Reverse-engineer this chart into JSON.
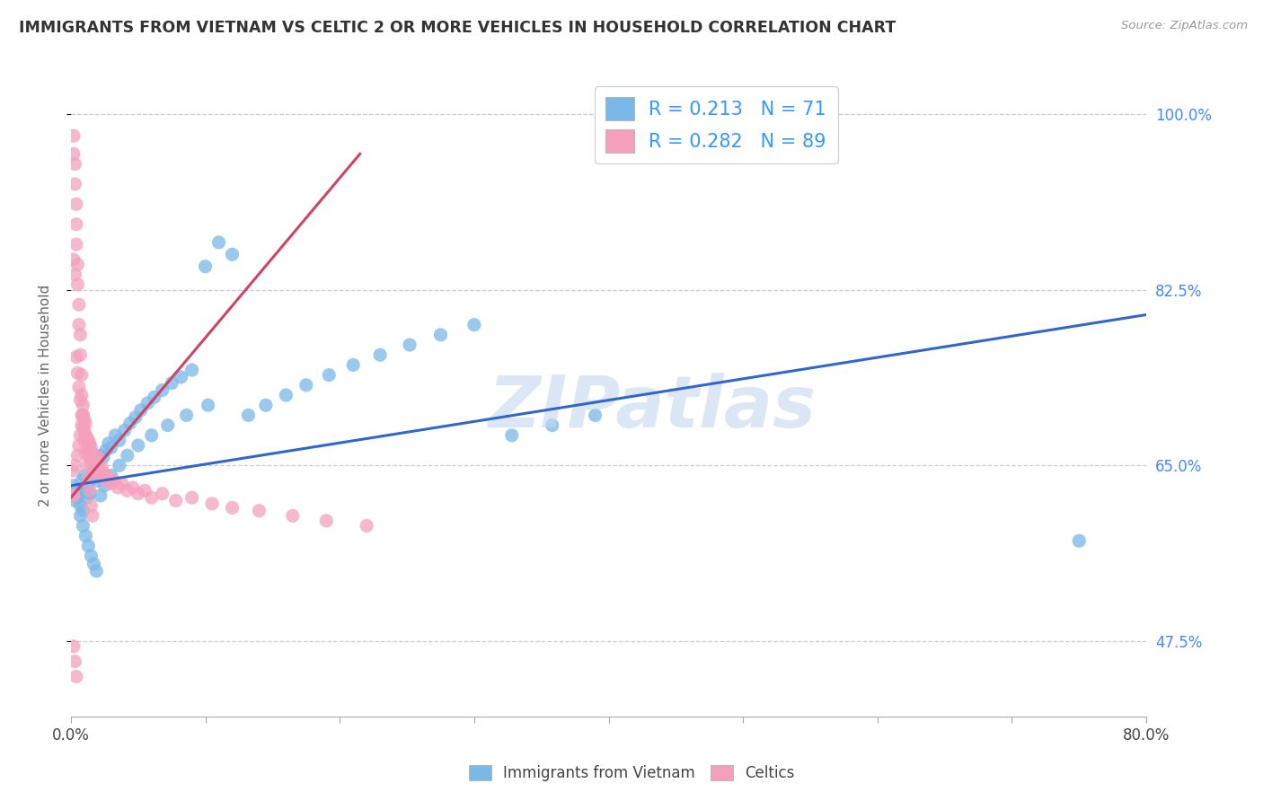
{
  "title": "IMMIGRANTS FROM VIETNAM VS CELTIC 2 OR MORE VEHICLES IN HOUSEHOLD CORRELATION CHART",
  "source": "Source: ZipAtlas.com",
  "ylabel_label": "2 or more Vehicles in Household",
  "xlim": [
    0.0,
    0.8
  ],
  "ylim": [
    0.4,
    1.04
  ],
  "ytick_vals": [
    0.475,
    0.65,
    0.825,
    1.0
  ],
  "ytick_labels": [
    "47.5%",
    "65.0%",
    "82.5%",
    "100.0%"
  ],
  "xtick_vals": [
    0.0,
    0.1,
    0.2,
    0.3,
    0.4,
    0.5,
    0.6,
    0.7,
    0.8
  ],
  "xtick_labels": [
    "0.0%",
    "",
    "",
    "",
    "",
    "",
    "",
    "",
    "80.0%"
  ],
  "legend_items": [
    {
      "label": "R = 0.213   N = 71",
      "color": "#aac8f0"
    },
    {
      "label": "R = 0.282   N = 89",
      "color": "#f0aac8"
    }
  ],
  "legend_r_color": "#3399ff",
  "watermark": "ZIPatlas",
  "blue_color": "#7ab8e8",
  "pink_color": "#f4a0bc",
  "blue_line_color": "#3366cc",
  "pink_line_color": "#cc4466",
  "blue_scatter_x": [
    0.001,
    0.002,
    0.003,
    0.004,
    0.005,
    0.006,
    0.007,
    0.008,
    0.009,
    0.01,
    0.011,
    0.012,
    0.013,
    0.014,
    0.015,
    0.016,
    0.017,
    0.018,
    0.019,
    0.02,
    0.022,
    0.024,
    0.026,
    0.028,
    0.03,
    0.033,
    0.036,
    0.04,
    0.044,
    0.048,
    0.052,
    0.057,
    0.062,
    0.068,
    0.075,
    0.082,
    0.09,
    0.1,
    0.11,
    0.12,
    0.132,
    0.145,
    0.16,
    0.175,
    0.192,
    0.21,
    0.23,
    0.252,
    0.275,
    0.3,
    0.328,
    0.358,
    0.39,
    0.007,
    0.009,
    0.011,
    0.013,
    0.015,
    0.017,
    0.019,
    0.022,
    0.025,
    0.03,
    0.036,
    0.042,
    0.05,
    0.06,
    0.072,
    0.086,
    0.102,
    0.75
  ],
  "blue_scatter_y": [
    0.62,
    0.63,
    0.615,
    0.625,
    0.618,
    0.622,
    0.61,
    0.635,
    0.605,
    0.64,
    0.628,
    0.618,
    0.632,
    0.622,
    0.655,
    0.645,
    0.638,
    0.648,
    0.635,
    0.65,
    0.66,
    0.658,
    0.665,
    0.672,
    0.668,
    0.68,
    0.675,
    0.685,
    0.692,
    0.698,
    0.705,
    0.712,
    0.718,
    0.725,
    0.732,
    0.738,
    0.745,
    0.848,
    0.872,
    0.86,
    0.7,
    0.71,
    0.72,
    0.73,
    0.74,
    0.75,
    0.76,
    0.77,
    0.78,
    0.79,
    0.68,
    0.69,
    0.7,
    0.6,
    0.59,
    0.58,
    0.57,
    0.56,
    0.552,
    0.545,
    0.62,
    0.63,
    0.64,
    0.65,
    0.66,
    0.67,
    0.68,
    0.69,
    0.7,
    0.71,
    0.575
  ],
  "pink_scatter_x": [
    0.001,
    0.001,
    0.002,
    0.002,
    0.002,
    0.003,
    0.003,
    0.003,
    0.004,
    0.004,
    0.004,
    0.005,
    0.005,
    0.005,
    0.006,
    0.006,
    0.006,
    0.007,
    0.007,
    0.007,
    0.008,
    0.008,
    0.008,
    0.009,
    0.009,
    0.009,
    0.01,
    0.01,
    0.011,
    0.011,
    0.012,
    0.012,
    0.013,
    0.013,
    0.014,
    0.014,
    0.015,
    0.015,
    0.016,
    0.016,
    0.017,
    0.017,
    0.018,
    0.019,
    0.02,
    0.02,
    0.021,
    0.022,
    0.023,
    0.024,
    0.025,
    0.026,
    0.028,
    0.03,
    0.032,
    0.035,
    0.038,
    0.042,
    0.046,
    0.05,
    0.055,
    0.06,
    0.068,
    0.078,
    0.09,
    0.105,
    0.12,
    0.14,
    0.165,
    0.19,
    0.22,
    0.002,
    0.003,
    0.004,
    0.005,
    0.006,
    0.007,
    0.008,
    0.009,
    0.01,
    0.011,
    0.012,
    0.013,
    0.014,
    0.015,
    0.016,
    0.002,
    0.003,
    0.004
  ],
  "pink_scatter_y": [
    0.62,
    0.645,
    0.978,
    0.96,
    0.62,
    0.95,
    0.93,
    0.65,
    0.91,
    0.89,
    0.87,
    0.85,
    0.83,
    0.66,
    0.81,
    0.79,
    0.67,
    0.78,
    0.76,
    0.68,
    0.74,
    0.72,
    0.69,
    0.71,
    0.7,
    0.7,
    0.695,
    0.685,
    0.692,
    0.68,
    0.678,
    0.668,
    0.675,
    0.665,
    0.672,
    0.66,
    0.668,
    0.655,
    0.662,
    0.65,
    0.658,
    0.645,
    0.655,
    0.652,
    0.648,
    0.658,
    0.645,
    0.642,
    0.648,
    0.638,
    0.642,
    0.635,
    0.638,
    0.632,
    0.635,
    0.628,
    0.632,
    0.625,
    0.628,
    0.622,
    0.625,
    0.618,
    0.622,
    0.615,
    0.618,
    0.612,
    0.608,
    0.605,
    0.6,
    0.595,
    0.59,
    0.855,
    0.84,
    0.758,
    0.742,
    0.728,
    0.715,
    0.7,
    0.688,
    0.675,
    0.662,
    0.65,
    0.638,
    0.625,
    0.61,
    0.6,
    0.47,
    0.455,
    0.44
  ],
  "blue_trend_x": [
    0.0,
    0.8
  ],
  "blue_trend_y": [
    0.63,
    0.8
  ],
  "pink_trend_x": [
    0.0,
    0.215
  ],
  "pink_trend_y": [
    0.618,
    0.96
  ],
  "background_color": "#ffffff",
  "grid_color": "#cccccc",
  "title_color": "#333333",
  "axis_label_color": "#666666",
  "ytick_label_color": "#4488ff",
  "source_color": "#999999",
  "watermark_color": "#c5d8f0",
  "legend_border_color": "#cccccc"
}
